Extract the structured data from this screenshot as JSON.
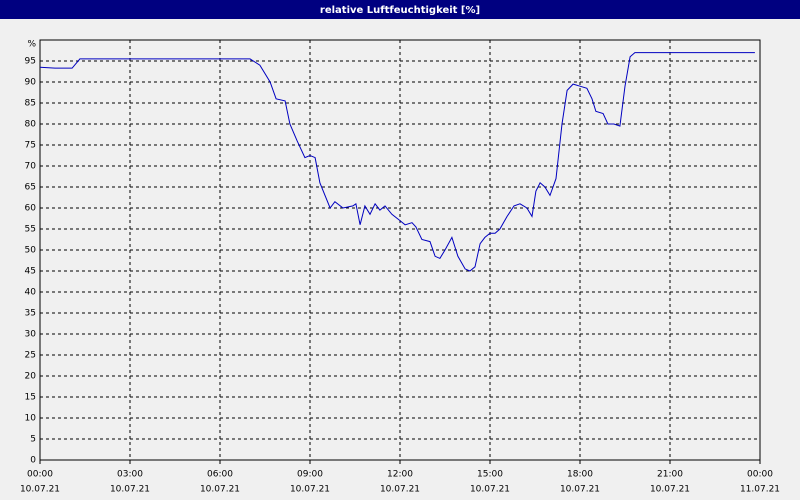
{
  "chart_data": {
    "type": "line",
    "title": "relative Luftfeuchtigkeit [%]",
    "ylabel": "%",
    "x": [
      0,
      0.5,
      1.07,
      1.33,
      3,
      5,
      7,
      7.33,
      7.67,
      7.87,
      8.17,
      8.33,
      8.57,
      8.83,
      9.0,
      9.17,
      9.33,
      9.67,
      9.83,
      10.1,
      10.43,
      10.53,
      10.67,
      10.83,
      11.0,
      11.17,
      11.33,
      11.5,
      11.73,
      12.0,
      12.17,
      12.4,
      12.53,
      12.73,
      13.0,
      13.17,
      13.33,
      13.5,
      13.73,
      13.93,
      14.17,
      14.33,
      14.5,
      14.67,
      14.83,
      15.0,
      15.17,
      15.33,
      15.57,
      15.8,
      16.0,
      16.23,
      16.4,
      16.53,
      16.67,
      16.83,
      17.0,
      17.2,
      17.4,
      17.57,
      17.77,
      18.0,
      18.23,
      18.4,
      18.53,
      18.77,
      18.93,
      19.13,
      19.33,
      19.5,
      19.67,
      19.83,
      22,
      23.83
    ],
    "series": [
      {
        "name": "relative Luftfeuchtigkeit",
        "color": "#0000c0",
        "values": [
          93.5,
          93.3,
          93.3,
          95.5,
          95.5,
          95.5,
          95.5,
          94,
          90,
          86,
          85.5,
          80,
          76,
          72,
          72.5,
          72,
          66,
          60,
          61.5,
          60,
          60.5,
          61,
          56,
          60.5,
          58.5,
          61,
          59.5,
          60.5,
          58.5,
          57,
          56,
          56.5,
          55.5,
          52.5,
          52,
          48.5,
          48,
          50,
          53,
          48.5,
          45.5,
          45,
          46,
          51.5,
          53,
          54,
          54,
          55,
          58,
          60.5,
          61,
          60,
          58,
          64,
          66,
          65,
          63,
          67,
          80,
          88,
          89.5,
          89,
          88.5,
          86,
          83,
          82.5,
          80,
          80,
          79.5,
          89,
          96,
          97,
          97,
          97
        ]
      }
    ],
    "xlim": [
      0,
      24
    ],
    "xticks": [
      {
        "value": 0,
        "label": "00:00",
        "date": "10.07.21"
      },
      {
        "value": 3,
        "label": "03:00",
        "date": "10.07.21"
      },
      {
        "value": 6,
        "label": "06:00",
        "date": "10.07.21"
      },
      {
        "value": 9,
        "label": "09:00",
        "date": "10.07.21"
      },
      {
        "value": 12,
        "label": "12:00",
        "date": "10.07.21"
      },
      {
        "value": 15,
        "label": "15:00",
        "date": "10.07.21"
      },
      {
        "value": 18,
        "label": "18:00",
        "date": "10.07.21"
      },
      {
        "value": 21,
        "label": "21:00",
        "date": "10.07.21"
      },
      {
        "value": 24,
        "label": "00:00",
        "date": "11.07.21"
      }
    ],
    "ylim": [
      0,
      100
    ],
    "yticks": [
      0,
      5,
      10,
      15,
      20,
      25,
      30,
      35,
      40,
      45,
      50,
      55,
      60,
      65,
      70,
      75,
      80,
      85,
      90,
      95
    ],
    "grid": true
  }
}
